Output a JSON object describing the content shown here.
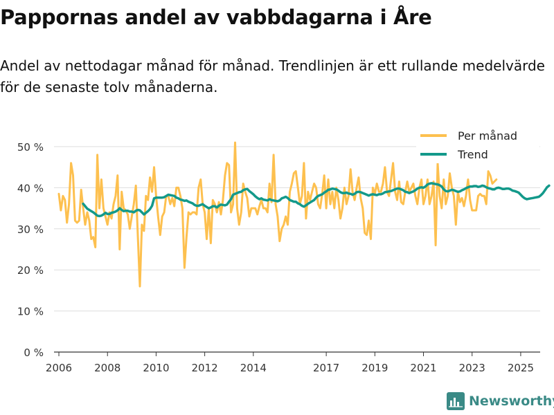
{
  "chart_data": {
    "type": "line",
    "title": "Pappornas andel av vabbdagarna i Åre",
    "subtitle": "Andel av nettodagar månad för månad. Trendlinjen är ett rullande medelvärde för de senaste tolv månaderna.",
    "xlabel": "",
    "ylabel": "",
    "xlim": [
      2005.8,
      2025.8
    ],
    "ylim": [
      0,
      50
    ],
    "grid": true,
    "legend_position": "top-right",
    "y_ticks": [
      0,
      10,
      20,
      30,
      40,
      50
    ],
    "y_tick_labels": [
      "0 %",
      "10 %",
      "20 %",
      "30 %",
      "40 %",
      "50 %"
    ],
    "x_ticks": [
      2006,
      2008,
      2010,
      2012,
      2014,
      2017,
      2019,
      2021,
      2023,
      2025
    ],
    "x_tick_labels": [
      "2006",
      "2008",
      "2010",
      "2012",
      "2014",
      "2017",
      "2019",
      "2021",
      "2023",
      "2025"
    ],
    "series": [
      {
        "name": "Per månad",
        "color": "#fdc04f",
        "x_start": 2006.0,
        "step": 0.0833333,
        "values": [
          38.5,
          34.5,
          38,
          37,
          31.5,
          36,
          46,
          43,
          32,
          31.5,
          32,
          39.5,
          35,
          31,
          34,
          32,
          27.5,
          28,
          25.5,
          48,
          35,
          42,
          35,
          33,
          31,
          34,
          32.5,
          36,
          38,
          43,
          25,
          39,
          35,
          34.5,
          33.5,
          30,
          33,
          36,
          40.5,
          28,
          16,
          31,
          29.5,
          38,
          37,
          42.5,
          39,
          45,
          38,
          33,
          28.5,
          33,
          34,
          38,
          38,
          36,
          37.5,
          35.5,
          40,
          40,
          38,
          35,
          20.5,
          28,
          34,
          33.5,
          34,
          34,
          33.5,
          40,
          42,
          36,
          34,
          27.5,
          35,
          26.5,
          37,
          36,
          34,
          36.5,
          33.5,
          37,
          43,
          46,
          45.5,
          34,
          36,
          51,
          35,
          31,
          34,
          41,
          39,
          37.5,
          33,
          35,
          35,
          35,
          33.5,
          35.5,
          37,
          35,
          35,
          34,
          41,
          36.5,
          48,
          36,
          33,
          27,
          30,
          31,
          33,
          31,
          39,
          41,
          43.5,
          44,
          40,
          36,
          38,
          46,
          32.5,
          39,
          37,
          39,
          41,
          40,
          36,
          35,
          38.5,
          43,
          35,
          42,
          36,
          39,
          35,
          40,
          37,
          32.5,
          35,
          40,
          36,
          38,
          44.5,
          39,
          37,
          40,
          42.5,
          37.5,
          35,
          29,
          28.5,
          32,
          27.5,
          40,
          38.5,
          41,
          39,
          39,
          41,
          45,
          39,
          38,
          42,
          46,
          39,
          37,
          41.5,
          36.5,
          36,
          39,
          41.5,
          39,
          40,
          41,
          38,
          36,
          40,
          42,
          36,
          38,
          42,
          36,
          38,
          41.5,
          26,
          46,
          38,
          35,
          42,
          36,
          38,
          43.5,
          40,
          38,
          31,
          39,
          36.5,
          37.5,
          35.5,
          38,
          42,
          37,
          34.5,
          34.5,
          34.5,
          38,
          38.5,
          38,
          38,
          36,
          44,
          43,
          41,
          41.5,
          42
        ]
      },
      {
        "name": "Trend",
        "color": "#13998a",
        "x_start": 2007.0,
        "step": 0.0833333,
        "values": [
          36.1,
          35.5,
          34.9,
          34.6,
          34.3,
          34.0,
          33.6,
          33.2,
          33.1,
          33.2,
          33.5,
          33.9,
          33.6,
          33.6,
          33.9,
          34.0,
          34.2,
          34.5,
          35.0,
          34.6,
          34.3,
          34.4,
          34.4,
          34.2,
          34.2,
          34.0,
          34.4,
          34.6,
          34.5,
          34.0,
          33.5,
          33.9,
          34.3,
          34.8,
          35.6,
          37.4,
          37.6,
          37.6,
          37.6,
          37.6,
          37.7,
          38.0,
          38.3,
          38.2,
          38.1,
          38.0,
          37.6,
          37.4,
          37.1,
          37.0,
          36.8,
          36.9,
          36.6,
          36.4,
          36.2,
          35.8,
          35.6,
          35.6,
          35.8,
          36.0,
          35.6,
          35.3,
          35.0,
          35.2,
          35.5,
          35.5,
          35.2,
          35.6,
          35.9,
          35.8,
          35.7,
          35.9,
          36.6,
          37.2,
          38.3,
          38.5,
          38.7,
          38.9,
          39.0,
          39.4,
          39.6,
          39.7,
          39.2,
          38.8,
          38.4,
          37.9,
          37.5,
          37.2,
          37.4,
          37.1,
          37.0,
          36.9,
          37.2,
          37.0,
          36.9,
          36.8,
          36.7,
          36.9,
          37.4,
          37.6,
          37.8,
          37.5,
          37.0,
          36.8,
          36.6,
          36.6,
          36.2,
          36.0,
          35.6,
          35.4,
          35.7,
          36.1,
          36.4,
          36.7,
          37.0,
          37.6,
          38.0,
          38.2,
          38.4,
          38.8,
          39.1,
          39.5,
          39.6,
          39.8,
          39.7,
          39.6,
          39.3,
          38.9,
          38.7,
          38.7,
          38.8,
          38.6,
          38.5,
          38.3,
          38.5,
          38.9,
          39.0,
          38.9,
          38.7,
          38.5,
          38.3,
          38.1,
          38.3,
          38.4,
          38.3,
          38.2,
          38.4,
          38.4,
          38.6,
          38.9,
          39.0,
          39.1,
          39.2,
          39.4,
          39.6,
          39.8,
          39.8,
          39.6,
          39.4,
          39.0,
          38.9,
          38.7,
          38.9,
          39.1,
          39.4,
          39.8,
          40.0,
          40.1,
          40.0,
          40.3,
          40.8,
          41.0,
          41.1,
          41.0,
          40.9,
          40.8,
          40.6,
          40.3,
          39.6,
          39.2,
          39.1,
          39.3,
          39.5,
          39.4,
          39.2,
          39.0,
          39.1,
          39.4,
          39.6,
          39.9,
          40.1,
          40.3,
          40.3,
          40.4,
          40.4,
          40.2,
          40.3,
          40.5,
          40.4,
          40.1,
          39.9,
          39.8,
          39.6,
          39.6,
          39.9,
          40.0,
          39.9,
          39.7,
          39.7,
          39.8,
          39.8,
          39.6,
          39.3,
          39.2,
          39.0,
          38.8,
          38.3,
          37.8,
          37.4,
          37.2,
          37.3,
          37.4,
          37.5,
          37.6,
          37.7,
          37.8,
          38.2,
          38.7,
          39.4,
          40.1,
          40.5
        ]
      }
    ]
  },
  "branding": {
    "name": "Newsworthy",
    "icon": "bar-chart-logo-icon",
    "color": "#3a8a86"
  }
}
